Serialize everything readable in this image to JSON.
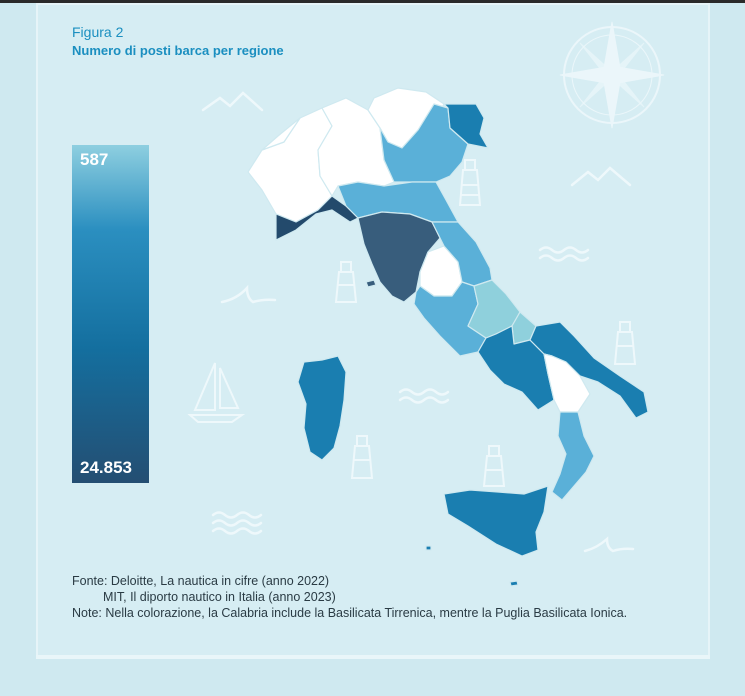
{
  "figure": {
    "label": "Figura 2",
    "title": "Numero di posti barca per regione"
  },
  "legend": {
    "max_label": "587",
    "min_label": "24.853",
    "colors": [
      "#8ecfe0",
      "#2b8fc0",
      "#146f9f",
      "#244e72"
    ]
  },
  "map": {
    "colors": {
      "no_data": "#ffffff",
      "light": "#8fd0dc",
      "mid": "#5ab0d8",
      "strong": "#1a7eb0",
      "dark": "#385d7c",
      "navy": "#234a6c"
    },
    "regions": [
      {
        "name": "Valle d'Aosta",
        "class": "no_data"
      },
      {
        "name": "Piemonte",
        "class": "no_data"
      },
      {
        "name": "Lombardia",
        "class": "no_data"
      },
      {
        "name": "Trentino-Alto Adige",
        "class": "no_data"
      },
      {
        "name": "Veneto",
        "class": "mid"
      },
      {
        "name": "Friuli-Venezia Giulia",
        "class": "strong"
      },
      {
        "name": "Liguria",
        "class": "navy"
      },
      {
        "name": "Emilia-Romagna",
        "class": "mid"
      },
      {
        "name": "Toscana",
        "class": "dark"
      },
      {
        "name": "Umbria",
        "class": "no_data"
      },
      {
        "name": "Marche",
        "class": "mid"
      },
      {
        "name": "Lazio",
        "class": "mid"
      },
      {
        "name": "Abruzzo",
        "class": "light"
      },
      {
        "name": "Molise",
        "class": "light"
      },
      {
        "name": "Campania",
        "class": "strong"
      },
      {
        "name": "Puglia",
        "class": "strong"
      },
      {
        "name": "Basilicata",
        "class": "no_data"
      },
      {
        "name": "Calabria",
        "class": "mid"
      },
      {
        "name": "Sicilia",
        "class": "strong"
      },
      {
        "name": "Sardegna",
        "class": "strong"
      }
    ]
  },
  "notes": {
    "source_line1": "Fonte: Deloitte, La nautica in cifre (anno 2022)",
    "source_line2": "MIT, Il diporto nautico in Italia (anno 2023)",
    "note": "Note: Nella colorazione, la Calabria include la Basilicata Tirrenica, mentre la Puglia Basilicata Ionica."
  },
  "decorations": {
    "icons": [
      "compass-rose-icon",
      "lighthouse-icon",
      "sailboat-icon",
      "wave-icon",
      "shark-fin-icon",
      "mountain-icon"
    ]
  }
}
